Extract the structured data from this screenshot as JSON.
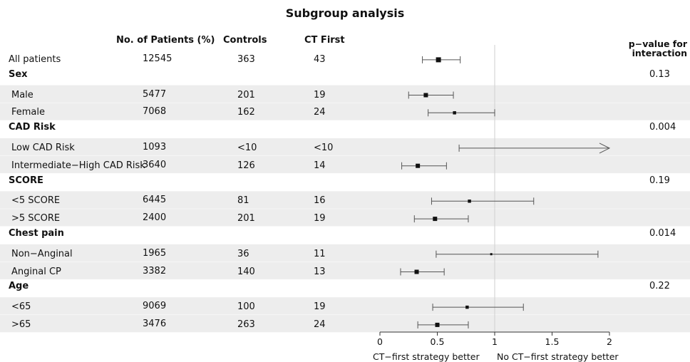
{
  "chart_data": {
    "type": "forest",
    "title": "Subgroup analysis",
    "columns": {
      "patients": "No. of Patients (%)",
      "controls": "Controls",
      "ct_first": "CT First",
      "p_value": "p−value for interaction"
    },
    "rows": [
      {
        "label": "All patients",
        "kind": "item",
        "shaded": false,
        "indent": false,
        "patients": "12545",
        "controls": "363",
        "ct_first": "43",
        "est": 0.51,
        "lo": 0.37,
        "hi": 0.7,
        "arrow": false,
        "marker": "large"
      },
      {
        "label": "Sex",
        "kind": "group",
        "p_value": "0.13"
      },
      {
        "label": "Male",
        "kind": "item",
        "shaded": true,
        "indent": true,
        "patients": "5477",
        "controls": "201",
        "ct_first": "19",
        "est": 0.4,
        "lo": 0.25,
        "hi": 0.64,
        "arrow": false,
        "marker": "medium"
      },
      {
        "label": "Female",
        "kind": "item",
        "shaded": true,
        "indent": true,
        "patients": "7068",
        "controls": "162",
        "ct_first": "24",
        "est": 0.65,
        "lo": 0.42,
        "hi": 1.0,
        "arrow": false,
        "marker": "small"
      },
      {
        "label": "CAD Risk",
        "kind": "group",
        "p_value": "0.004"
      },
      {
        "label": "Low CAD Risk",
        "kind": "item",
        "shaded": true,
        "indent": true,
        "patients": "1093",
        "controls": "<10",
        "ct_first": "<10",
        "est": null,
        "lo": 0.69,
        "hi": 2.0,
        "arrow": true,
        "marker": "none"
      },
      {
        "label": "Intermediate−High CAD Risk",
        "kind": "item",
        "shaded": true,
        "indent": true,
        "patients": "3640",
        "controls": "126",
        "ct_first": "14",
        "est": 0.33,
        "lo": 0.19,
        "hi": 0.58,
        "arrow": false,
        "marker": "medium"
      },
      {
        "label": "SCORE",
        "kind": "group",
        "p_value": "0.19"
      },
      {
        "label": "<5 SCORE",
        "kind": "item",
        "shaded": true,
        "indent": true,
        "patients": "6445",
        "controls": "81",
        "ct_first": "16",
        "est": 0.78,
        "lo": 0.45,
        "hi": 1.34,
        "arrow": false,
        "marker": "small"
      },
      {
        "label": ">5 SCORE",
        "kind": "item",
        "shaded": true,
        "indent": true,
        "patients": "2400",
        "controls": "201",
        "ct_first": "19",
        "est": 0.48,
        "lo": 0.3,
        "hi": 0.77,
        "arrow": false,
        "marker": "medium"
      },
      {
        "label": "Chest pain",
        "kind": "group",
        "p_value": "0.014"
      },
      {
        "label": "Non−Anginal",
        "kind": "item",
        "shaded": true,
        "indent": true,
        "patients": "1965",
        "controls": "36",
        "ct_first": "11",
        "est": 0.97,
        "lo": 0.49,
        "hi": 1.9,
        "arrow": false,
        "marker": "tiny"
      },
      {
        "label": "Anginal CP",
        "kind": "item",
        "shaded": true,
        "indent": true,
        "patients": "3382",
        "controls": "140",
        "ct_first": "13",
        "est": 0.32,
        "lo": 0.18,
        "hi": 0.56,
        "arrow": false,
        "marker": "medium"
      },
      {
        "label": "Age",
        "kind": "group",
        "p_value": "0.22"
      },
      {
        "label": "<65",
        "kind": "item",
        "shaded": true,
        "indent": true,
        "patients": "9069",
        "controls": "100",
        "ct_first": "19",
        "est": 0.76,
        "lo": 0.46,
        "hi": 1.25,
        "arrow": false,
        "marker": "small"
      },
      {
        "label": ">65",
        "kind": "item",
        "shaded": true,
        "indent": true,
        "patients": "3476",
        "controls": "263",
        "ct_first": "24",
        "est": 0.5,
        "lo": 0.33,
        "hi": 0.77,
        "arrow": false,
        "marker": "medium"
      }
    ],
    "x_axis": {
      "xlim": [
        0,
        2
      ],
      "ticks": [
        "0",
        "0.5",
        "1",
        "1.5",
        "2"
      ],
      "reference_line": 1
    },
    "annotations": {
      "left": "CT−first strategy better",
      "right": "No CT−first strategy better"
    },
    "colors": {
      "shade": "#ededed",
      "ci_line": "#555555",
      "marker": "#111111",
      "reference": "#cfcfcf"
    }
  }
}
